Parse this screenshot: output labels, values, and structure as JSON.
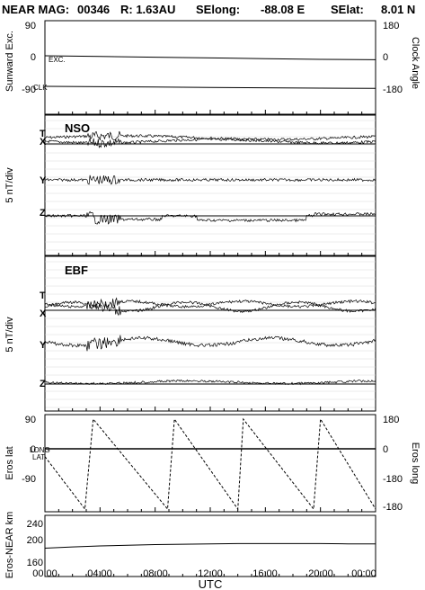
{
  "header": {
    "mission": "NEAR MAG:",
    "day": "00346",
    "range": "R: 1.63AU",
    "selong_label": "SElong:",
    "selong_value": "-88.08 E",
    "selat_label": "SElat:",
    "selat_value": "8.01 N"
  },
  "x_axis": {
    "label": "UTC",
    "ticks": [
      "00:00",
      "04:00",
      "08:00",
      "12:00",
      "16:00",
      "20:00",
      "00:00"
    ],
    "range_hours": [
      0,
      24
    ]
  },
  "chart_data": [
    {
      "type": "line",
      "id": "sunward",
      "ylabel_left": "Sunward Exc.",
      "ylabel_right": "Clock Angle",
      "left_ticks": [
        "90",
        "0",
        "-90"
      ],
      "right_ticks": [
        "180",
        "0",
        "-180"
      ],
      "ylim": [
        -90,
        90
      ],
      "annotations": [
        "EXC.",
        "CLK"
      ],
      "series": [
        {
          "name": "EXC.",
          "x": [
            0,
            4,
            8,
            12,
            16,
            20,
            24
          ],
          "y": [
            5,
            3,
            1,
            -1,
            -3,
            -5,
            -6
          ]
        },
        {
          "name": "CLK",
          "x": [
            0,
            4,
            8,
            12,
            16,
            20,
            24
          ],
          "y": [
            -160,
            -162,
            -164,
            -166,
            -168,
            -170,
            -171
          ]
        }
      ]
    },
    {
      "type": "line",
      "id": "nso",
      "title": "NSO",
      "ylabel_left": "5 nT/div",
      "trace_labels": [
        "T",
        "X",
        "Y",
        "Z"
      ],
      "grid": true
    },
    {
      "type": "line",
      "id": "ebf",
      "title": "EBF",
      "ylabel_left": "5 nT/div",
      "trace_labels": [
        "T",
        "X",
        "Y",
        "Z"
      ],
      "grid": true
    },
    {
      "type": "line",
      "id": "eros",
      "ylabel_left": "Eros lat",
      "ylabel_right": "Eros long",
      "left_ticks": [
        "90",
        "0",
        "-90"
      ],
      "right_ticks": [
        "180",
        "0",
        "-180"
      ],
      "ylim": [
        -90,
        90
      ],
      "annotations": [
        "LONG",
        "LAT"
      ],
      "series": [
        {
          "name": "LAT",
          "x": [
            0,
            24
          ],
          "y": [
            0,
            0
          ]
        },
        {
          "name": "LONG",
          "x": [
            0,
            2.9,
            3.5,
            8.9,
            9.4,
            14.0,
            14.4,
            19.5,
            20.0,
            24
          ],
          "y": [
            30,
            -180,
            180,
            -180,
            180,
            -180,
            180,
            -180,
            180,
            -180
          ]
        }
      ]
    },
    {
      "type": "line",
      "id": "distance",
      "ylabel_left": "Eros-NEAR km",
      "left_ticks": [
        "240",
        "200",
        "160"
      ],
      "ylim": [
        130,
        260
      ],
      "series": [
        {
          "name": "Eros-NEAR",
          "x": [
            0,
            2,
            4,
            6,
            8,
            10,
            12,
            14,
            16,
            18,
            20,
            22,
            24
          ],
          "y": [
            180,
            184,
            187,
            189,
            191,
            192,
            193,
            194,
            194,
            194,
            194,
            193,
            193
          ]
        }
      ]
    }
  ]
}
